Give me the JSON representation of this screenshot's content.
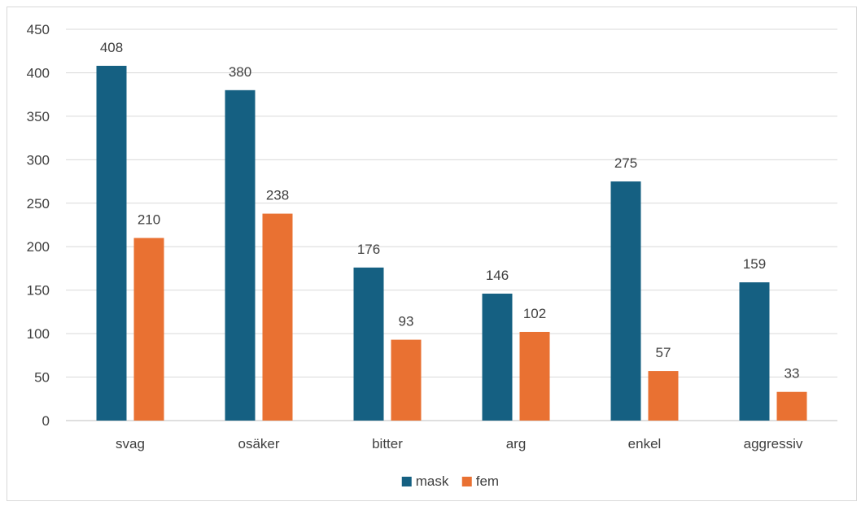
{
  "chart_data": {
    "type": "bar",
    "categories": [
      "svag",
      "osäker",
      "bitter",
      "arg",
      "enkel",
      "aggressiv"
    ],
    "series": [
      {
        "name": "mask",
        "values": [
          408,
          380,
          176,
          146,
          275,
          159
        ],
        "color": "#156082"
      },
      {
        "name": "fem",
        "values": [
          210,
          238,
          93,
          102,
          57,
          33
        ],
        "color": "#E97132"
      }
    ],
    "ylim": [
      0,
      450
    ],
    "yticks": [
      0,
      50,
      100,
      150,
      200,
      250,
      300,
      350,
      400,
      450
    ],
    "grid": true,
    "legend": "bottom",
    "data_labels": true,
    "title": "",
    "xlabel": "",
    "ylabel": ""
  }
}
